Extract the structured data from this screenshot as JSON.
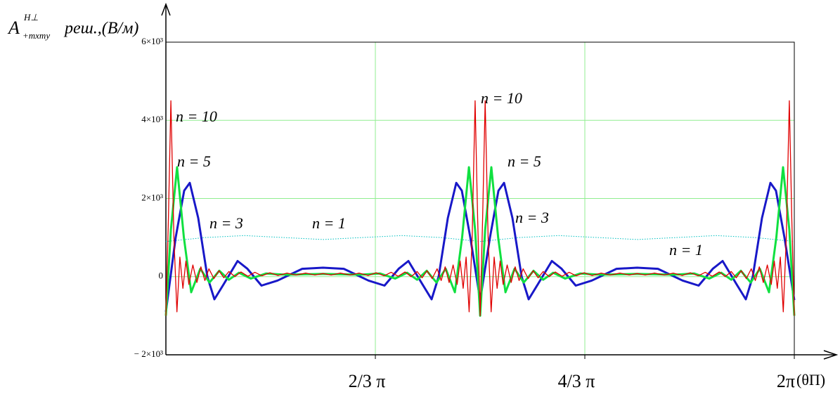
{
  "chart_data": {
    "type": "line",
    "y_label": {
      "symbol": "A",
      "superscript": "H⊥",
      "subscript": "+mxmy",
      "text": "реш.,(В/м)"
    },
    "x_label": "(θП)",
    "xlim": [
      0,
      6.2832
    ],
    "ylim": [
      -2000,
      6000
    ],
    "xticks": [
      {
        "value": 2.0944,
        "label": "2/3 π"
      },
      {
        "value": 4.1888,
        "label": "4/3 π"
      },
      {
        "value": 6.2832,
        "label": "2π"
      }
    ],
    "yticks": [
      {
        "value": -2000,
        "label": "− 2×10³"
      },
      0,
      {
        "value": 2000,
        "label": "2×10³"
      },
      {
        "value": 4000,
        "label": "4×10³"
      },
      {
        "value": 6000,
        "label": "6×10³"
      }
    ],
    "grid": true,
    "grid_color": "#90ee90",
    "annotations": [
      "n = 10",
      "n = 5",
      "n = 3",
      "n = 1",
      "n = 10",
      "n = 5",
      "n = 3",
      "n = 1"
    ],
    "series": [
      {
        "color": "#00c0c0",
        "line_style": "dotted",
        "width": 1,
        "x": [
          0,
          0.393,
          0.785,
          1.178,
          1.571,
          1.963,
          2.356,
          2.749,
          3.142,
          3.534,
          3.927,
          4.32,
          4.712,
          5.105,
          5.498,
          5.89,
          6.283
        ],
        "values": [
          900,
          1000,
          1050,
          1000,
          950,
          1000,
          1050,
          1000,
          900,
          1000,
          1050,
          1000,
          950,
          1000,
          1050,
          1000,
          900
        ]
      },
      {
        "color": "#1818c8",
        "line_style": "solid",
        "width": 3,
        "x": [
          0,
          0.098,
          0.183,
          0.239,
          0.323,
          0.415,
          0.485,
          0.576,
          0.717,
          0.815,
          0.956,
          1.117,
          1.363,
          1.571,
          1.779,
          2.025,
          2.186,
          2.327,
          2.425,
          2.566,
          2.657,
          2.727,
          2.819,
          2.903,
          2.959,
          3.044,
          3.142,
          3.24,
          3.325,
          3.381,
          3.465,
          3.557,
          3.627,
          3.718,
          3.859,
          3.957,
          4.098,
          4.259,
          4.505,
          4.712,
          4.92,
          5.166,
          5.327,
          5.468,
          5.566,
          5.707,
          5.798,
          5.868,
          5.96,
          6.044,
          6.1,
          6.185,
          6.283
        ],
        "values": [
          -900,
          1000,
          2200,
          2400,
          1500,
          0,
          -580,
          -200,
          400,
          200,
          -230,
          -100,
          200,
          230,
          200,
          -100,
          -230,
          200,
          400,
          -200,
          -580,
          0,
          1500,
          2400,
          2200,
          1000,
          -600,
          1000,
          2200,
          2400,
          1500,
          0,
          -580,
          -200,
          400,
          200,
          -230,
          -100,
          200,
          230,
          200,
          -100,
          -230,
          200,
          400,
          -200,
          -580,
          0,
          1500,
          2400,
          2200,
          1000,
          -600
        ]
      },
      {
        "color": "#10e040",
        "line_style": "solid",
        "width": 3,
        "x": [
          0,
          0.05,
          0.112,
          0.18,
          0.253,
          0.344,
          0.436,
          0.534,
          0.63,
          0.73,
          0.85,
          1.0,
          1.2,
          1.4,
          1.571,
          1.742,
          1.942,
          2.142,
          2.292,
          2.412,
          2.512,
          2.608,
          2.706,
          2.798,
          2.889,
          2.962,
          3.03,
          3.092,
          3.142,
          3.192,
          3.254,
          3.322,
          3.395,
          3.486,
          3.578,
          3.676,
          3.772,
          3.872,
          3.992,
          4.142,
          4.342,
          4.542,
          4.712,
          4.883,
          5.083,
          5.283,
          5.433,
          5.553,
          5.653,
          5.749,
          5.847,
          5.939,
          6.03,
          6.103,
          6.171,
          6.233,
          6.283
        ],
        "values": [
          -1000,
          1200,
          2800,
          1000,
          -400,
          200,
          -150,
          150,
          -80,
          100,
          -50,
          80,
          50,
          60,
          70,
          60,
          50,
          80,
          -50,
          100,
          -80,
          150,
          -150,
          200,
          -400,
          1000,
          2800,
          1200,
          -1000,
          1200,
          2800,
          1000,
          -400,
          200,
          -150,
          150,
          -80,
          100,
          -50,
          80,
          50,
          60,
          70,
          60,
          50,
          80,
          -50,
          100,
          -80,
          150,
          -150,
          200,
          -400,
          1000,
          2800,
          1200,
          -1000
        ]
      },
      {
        "color": "#e00000",
        "line_style": "solid",
        "width": 1.3,
        "x": [
          0,
          0.025,
          0.05,
          0.08,
          0.11,
          0.14,
          0.17,
          0.2,
          0.23,
          0.27,
          0.31,
          0.35,
          0.39,
          0.43,
          0.48,
          0.53,
          0.58,
          0.63,
          0.69,
          0.75,
          0.82,
          0.89,
          0.96,
          1.04,
          1.12,
          1.21,
          1.3,
          1.4,
          1.49,
          1.571,
          1.652,
          1.742,
          1.842,
          1.932,
          2.022,
          2.102,
          2.182,
          2.252,
          2.322,
          2.392,
          2.452,
          2.512,
          2.562,
          2.612,
          2.662,
          2.712,
          2.752,
          2.792,
          2.832,
          2.872,
          2.912,
          2.942,
          2.972,
          3.002,
          3.032,
          3.062,
          3.092,
          3.117,
          3.142,
          3.167,
          3.192,
          3.222,
          3.252,
          3.282,
          3.312,
          3.342,
          3.372,
          3.412,
          3.452,
          3.492,
          3.532,
          3.572,
          3.622,
          3.672,
          3.722,
          3.772,
          3.832,
          3.892,
          3.962,
          4.032,
          4.102,
          4.182,
          4.262,
          4.352,
          4.442,
          4.542,
          4.632,
          4.712,
          4.793,
          4.883,
          4.983,
          5.073,
          5.163,
          5.243,
          5.323,
          5.393,
          5.463,
          5.533,
          5.593,
          5.653,
          5.703,
          5.753,
          5.803,
          5.853,
          5.893,
          5.933,
          5.973,
          6.013,
          6.053,
          6.083,
          6.113,
          6.143,
          6.173,
          6.203,
          6.233,
          6.258,
          6.283
        ],
        "values": [
          -1000,
          1500,
          4500,
          1000,
          -900,
          500,
          -300,
          400,
          -200,
          300,
          -150,
          250,
          -100,
          200,
          -50,
          150,
          -30,
          130,
          0,
          120,
          10,
          110,
          20,
          100,
          30,
          90,
          40,
          90,
          40,
          80,
          40,
          90,
          40,
          90,
          30,
          100,
          20,
          110,
          10,
          120,
          0,
          130,
          -30,
          150,
          -50,
          200,
          -100,
          250,
          -150,
          300,
          -200,
          400,
          -300,
          500,
          -900,
          1000,
          4500,
          1500,
          -1000,
          1500,
          4500,
          1000,
          -900,
          500,
          -300,
          400,
          -200,
          300,
          -150,
          250,
          -100,
          200,
          -50,
          150,
          -30,
          130,
          0,
          120,
          10,
          110,
          20,
          100,
          30,
          90,
          40,
          90,
          40,
          80,
          40,
          90,
          40,
          90,
          30,
          100,
          20,
          110,
          10,
          120,
          0,
          130,
          -30,
          150,
          -50,
          200,
          -100,
          250,
          -150,
          300,
          -200,
          400,
          -300,
          500,
          -900,
          1000,
          4500,
          1500,
          -1000
        ]
      }
    ]
  }
}
